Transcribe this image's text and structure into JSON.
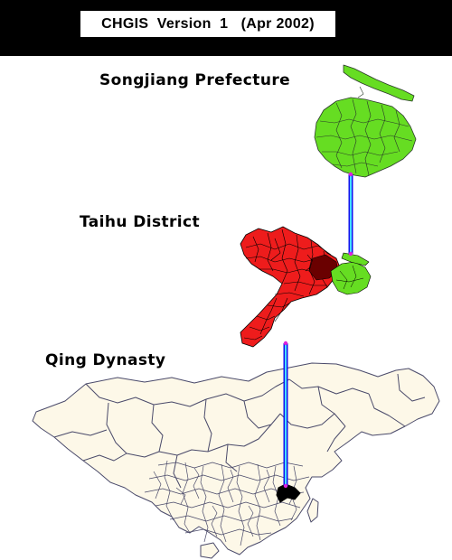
{
  "header": {
    "title": "CHGIS  Version  1   (Apr 2002)"
  },
  "levels": [
    {
      "label": "Songjiang Prefecture",
      "fill": "#66dd22"
    },
    {
      "label": "Taihu District",
      "fill": "#ee1c1c"
    },
    {
      "label": "Qing Dynasty",
      "fill": "#fdf8e8"
    }
  ],
  "colors": {
    "connector_outer": "#1111ee",
    "connector_inner": "#44ddff",
    "joint": "#dd22dd",
    "boundary": "#4a4a6a",
    "focus": "#000000"
  }
}
